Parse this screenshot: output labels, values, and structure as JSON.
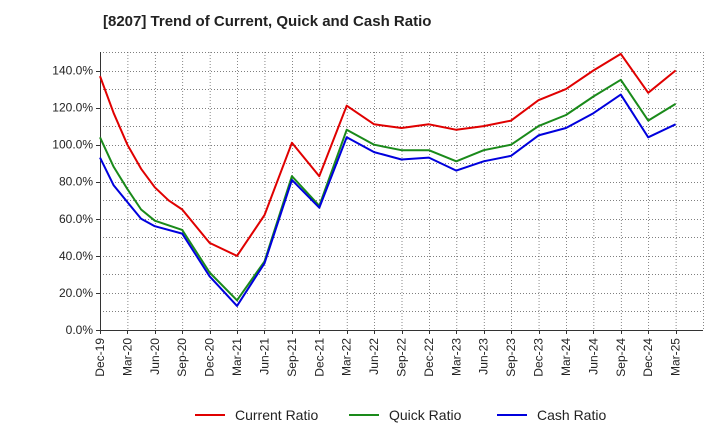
{
  "chart_data": {
    "type": "line",
    "title": "[8207]  Trend of Current, Quick and Cash Ratio",
    "xlabel": "",
    "ylabel": "",
    "ylim": [
      0,
      150
    ],
    "y_ticks": [
      "0.0%",
      "20.0%",
      "40.0%",
      "60.0%",
      "80.0%",
      "100.0%",
      "120.0%",
      "140.0%"
    ],
    "y_tick_values": [
      0,
      20,
      40,
      60,
      80,
      100,
      120,
      140
    ],
    "x_tick_labels": [
      "Dec-19",
      "Mar-20",
      "Jun-20",
      "Sep-20",
      "Dec-20",
      "Mar-21",
      "Jun-21",
      "Sep-21",
      "Dec-21",
      "Mar-22",
      "Jun-22",
      "Sep-22",
      "Dec-22",
      "Mar-23",
      "Jun-23",
      "Sep-23",
      "Dec-23",
      "Mar-24",
      "Jun-24",
      "Sep-24",
      "Dec-24",
      "Mar-25"
    ],
    "grid": true,
    "legend_position": "bottom",
    "series": [
      {
        "name": "Current Ratio",
        "color": "#e00000",
        "points": [
          [
            0,
            137
          ],
          [
            0.5,
            117
          ],
          [
            1,
            100
          ],
          [
            1.5,
            87
          ],
          [
            2,
            77
          ],
          [
            2.5,
            70
          ],
          [
            3,
            65
          ],
          [
            4,
            47
          ],
          [
            5,
            40
          ],
          [
            6,
            62
          ],
          [
            7,
            101
          ],
          [
            8,
            83
          ],
          [
            9,
            121
          ],
          [
            10,
            111
          ],
          [
            11,
            109
          ],
          [
            12,
            111
          ],
          [
            13,
            108
          ],
          [
            14,
            110
          ],
          [
            15,
            113
          ],
          [
            16,
            124
          ],
          [
            17,
            130
          ],
          [
            18,
            140
          ],
          [
            19,
            149
          ],
          [
            20,
            128
          ],
          [
            21,
            140
          ]
        ]
      },
      {
        "name": "Quick Ratio",
        "color": "#1a8a1a",
        "points": [
          [
            0,
            104
          ],
          [
            0.5,
            88
          ],
          [
            1,
            76
          ],
          [
            1.5,
            65
          ],
          [
            2,
            59
          ],
          [
            3,
            54
          ],
          [
            4,
            31
          ],
          [
            5,
            16
          ],
          [
            6,
            37
          ],
          [
            7,
            83
          ],
          [
            8,
            67
          ],
          [
            9,
            108
          ],
          [
            10,
            100
          ],
          [
            11,
            97
          ],
          [
            12,
            97
          ],
          [
            13,
            91
          ],
          [
            14,
            97
          ],
          [
            15,
            100
          ],
          [
            16,
            110
          ],
          [
            17,
            116
          ],
          [
            18,
            126
          ],
          [
            19,
            135
          ],
          [
            20,
            113
          ],
          [
            21,
            122
          ]
        ]
      },
      {
        "name": "Cash Ratio",
        "color": "#0000dd",
        "points": [
          [
            0,
            93
          ],
          [
            0.5,
            78
          ],
          [
            1,
            69
          ],
          [
            1.5,
            60
          ],
          [
            2,
            56
          ],
          [
            3,
            52
          ],
          [
            4,
            29
          ],
          [
            5,
            13
          ],
          [
            6,
            36
          ],
          [
            7,
            81
          ],
          [
            8,
            66
          ],
          [
            9,
            104
          ],
          [
            10,
            96
          ],
          [
            11,
            92
          ],
          [
            12,
            93
          ],
          [
            13,
            86
          ],
          [
            14,
            91
          ],
          [
            15,
            94
          ],
          [
            16,
            105
          ],
          [
            17,
            109
          ],
          [
            18,
            117
          ],
          [
            19,
            127
          ],
          [
            20,
            104
          ],
          [
            21,
            111
          ]
        ]
      }
    ]
  }
}
